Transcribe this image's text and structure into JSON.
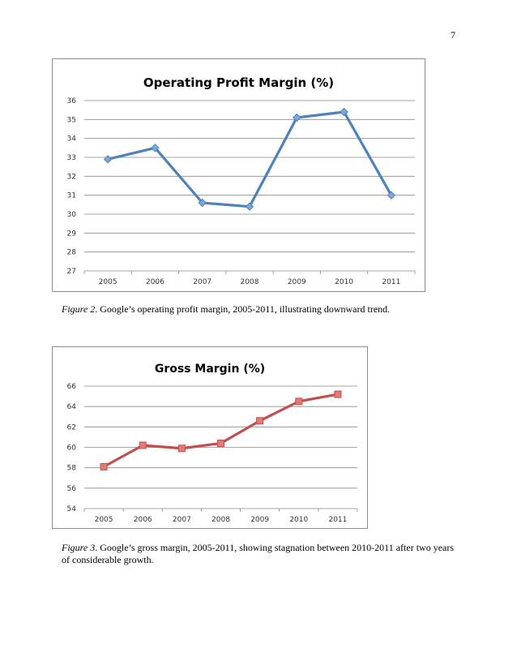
{
  "page": {
    "number": "7"
  },
  "captions": [
    {
      "label": "Figure 2",
      "text": ". Google’s operating profit margin, 2005-2011, illustrating downward trend."
    },
    {
      "label": "Figure 3",
      "text": ". Google’s gross margin, 2005-2011, showing stagnation between 2010-2011 after two years of considerable growth."
    }
  ],
  "chart_data": [
    {
      "type": "line",
      "title": "Operating Profit Margin (%)",
      "xlabel": "",
      "ylabel": "",
      "x": [
        "2005",
        "2006",
        "2007",
        "2008",
        "2009",
        "2010",
        "2011"
      ],
      "y_ticks": [
        "27",
        "28",
        "29",
        "30",
        "31",
        "32",
        "33",
        "34",
        "35",
        "36"
      ],
      "ylim": [
        27,
        36
      ],
      "series": [
        {
          "values": [
            32.9,
            33.5,
            30.6,
            30.4,
            35.1,
            35.4,
            31.0
          ]
        }
      ],
      "marker": "diamond",
      "color": "#4f81bd",
      "marker_color": "#7ea6d8",
      "grid": true,
      "legend": "none"
    },
    {
      "type": "line",
      "title": "Gross Margin (%)",
      "xlabel": "",
      "ylabel": "",
      "x": [
        "2005",
        "2006",
        "2007",
        "2008",
        "2009",
        "2010",
        "2011"
      ],
      "y_ticks": [
        "54",
        "56",
        "58",
        "60",
        "62",
        "64",
        "66"
      ],
      "ylim": [
        54,
        66
      ],
      "series": [
        {
          "values": [
            58.1,
            60.2,
            59.9,
            60.4,
            62.6,
            64.5,
            65.2
          ]
        }
      ],
      "marker": "square",
      "color": "#c0504d",
      "marker_color": "#e07b78",
      "grid": true,
      "legend": "none"
    }
  ]
}
